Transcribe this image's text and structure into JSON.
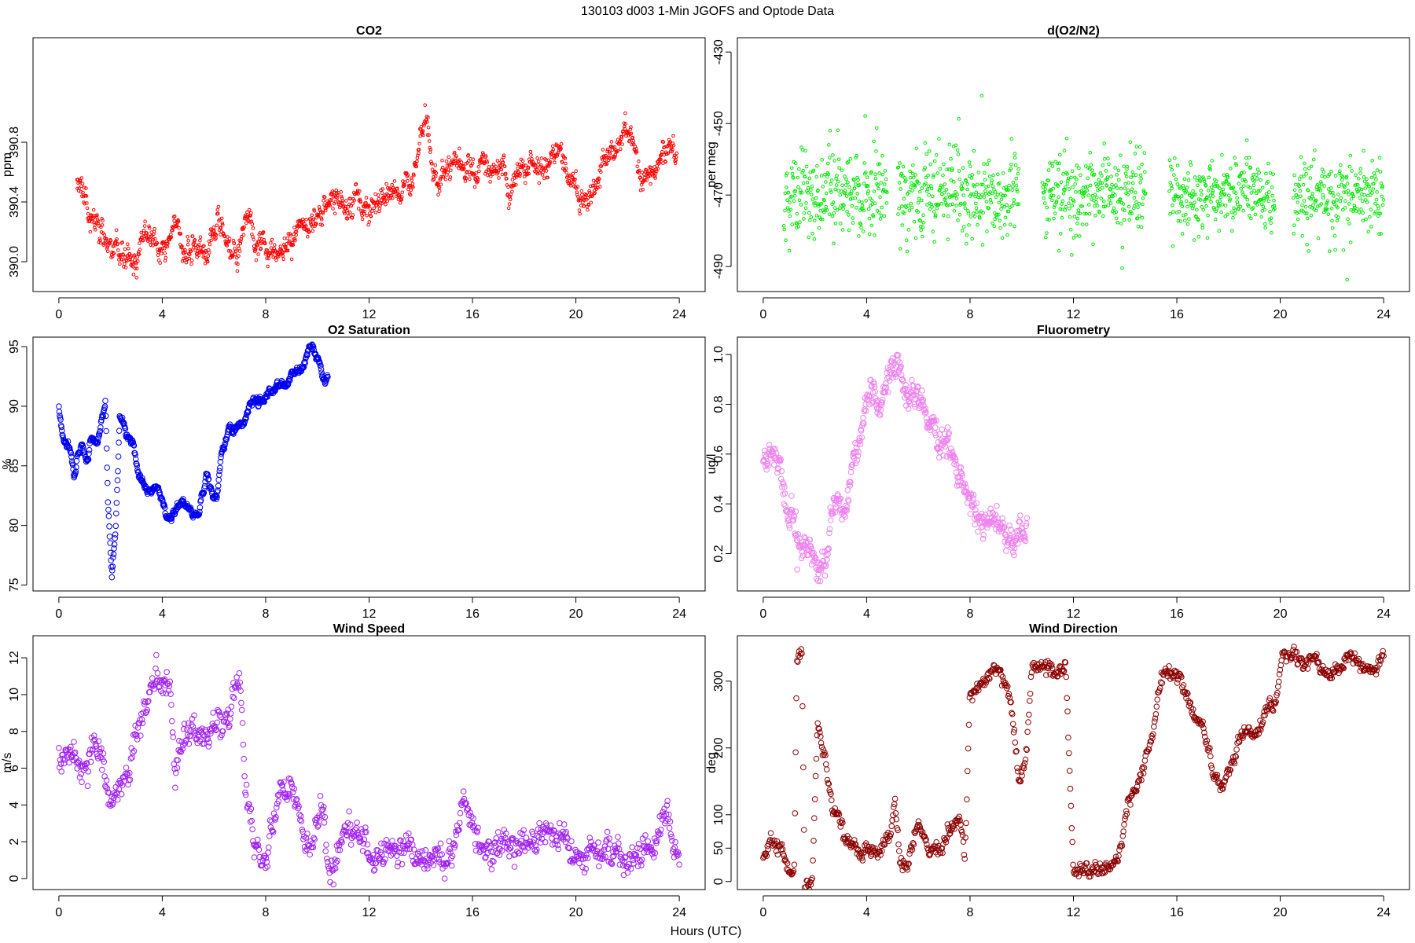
{
  "figure": {
    "title": "130103   d003   1-Min  JGOFS and Optode Data",
    "xlabel": "Hours (UTC)"
  },
  "chart_data": [
    {
      "id": "co2",
      "type": "scatter",
      "title": "CO2",
      "ylabel": "ppm",
      "xlim": [
        -1,
        25
      ],
      "ylim": [
        389.8,
        391.5
      ],
      "xticks": [
        0,
        4,
        8,
        12,
        16,
        20,
        24
      ],
      "yticks": [
        390.0,
        390.4,
        390.8
      ],
      "ytick_labels": [
        "390.0",
        "390.4",
        "390.8"
      ],
      "color": "#ff0000",
      "marker_size": 1.8,
      "anchors": [
        [
          0.7,
          390.6
        ],
        [
          1.0,
          390.45
        ],
        [
          1.3,
          390.3
        ],
        [
          1.6,
          390.2
        ],
        [
          1.9,
          390.1
        ],
        [
          2.2,
          390.0
        ],
        [
          2.6,
          390.0
        ],
        [
          3.0,
          389.95
        ],
        [
          3.3,
          390.2
        ],
        [
          3.7,
          390.15
        ],
        [
          4.0,
          390.0
        ],
        [
          4.4,
          390.15
        ],
        [
          4.6,
          390.25
        ],
        [
          5.0,
          390.05
        ],
        [
          5.5,
          390.1
        ],
        [
          5.8,
          390.1
        ],
        [
          6.1,
          390.25
        ],
        [
          6.5,
          390.05
        ],
        [
          6.8,
          390.05
        ],
        [
          7.1,
          390.2
        ],
        [
          7.3,
          390.3
        ],
        [
          7.6,
          390.05
        ],
        [
          7.9,
          390.2
        ],
        [
          8.2,
          390.1
        ],
        [
          8.6,
          390.1
        ],
        [
          9.0,
          390.15
        ],
        [
          9.5,
          390.25
        ],
        [
          9.9,
          390.3
        ],
        [
          10.4,
          390.35
        ],
        [
          10.8,
          390.45
        ],
        [
          11.2,
          390.35
        ],
        [
          11.6,
          390.4
        ],
        [
          12.0,
          390.3
        ],
        [
          12.4,
          390.45
        ],
        [
          12.8,
          390.5
        ],
        [
          13.2,
          390.55
        ],
        [
          13.6,
          390.5
        ],
        [
          13.9,
          390.65
        ],
        [
          14.2,
          390.9
        ],
        [
          14.6,
          390.55
        ],
        [
          15.6,
          390.6
        ],
        [
          15.9,
          390.55
        ],
        [
          16.3,
          390.6
        ],
        [
          16.8,
          390.7
        ],
        [
          17.2,
          390.6
        ],
        [
          17.5,
          390.45
        ],
        [
          17.9,
          390.6
        ],
        [
          18.3,
          390.65
        ],
        [
          18.7,
          390.55
        ],
        [
          19.0,
          390.65
        ],
        [
          19.4,
          390.7
        ],
        [
          19.8,
          390.55
        ],
        [
          20.5,
          390.4
        ],
        [
          20.8,
          390.55
        ],
        [
          21.2,
          390.65
        ],
        [
          21.6,
          390.7
        ],
        [
          22.0,
          390.9
        ],
        [
          22.3,
          390.8
        ],
        [
          22.6,
          390.65
        ],
        [
          23.0,
          390.65
        ],
        [
          23.4,
          390.75
        ],
        [
          23.9,
          390.8
        ]
      ],
      "noise": 0.05,
      "spread": 0.06,
      "pattern": "walk",
      "n": 1400,
      "seed": 11
    },
    {
      "id": "o2n2",
      "type": "scatter",
      "title": "d(O2/N2)",
      "ylabel": "per meg",
      "xlim": [
        -1,
        25
      ],
      "ylim": [
        -497,
        -426
      ],
      "xticks": [
        0,
        4,
        8,
        12,
        16,
        20,
        24
      ],
      "yticks": [
        -490,
        -470,
        -450,
        -430
      ],
      "ytick_labels": [
        "-490",
        "-470",
        "-450",
        "-430"
      ],
      "color": "#00e600",
      "marker_size": 1.8,
      "segments": [
        [
          0.8,
          4.8
        ],
        [
          5.2,
          9.9
        ],
        [
          10.8,
          14.8
        ],
        [
          15.7,
          19.8
        ],
        [
          20.5,
          24.0
        ]
      ],
      "center": -470,
      "noise": 5.5,
      "pattern": "uniform",
      "n": 1300,
      "seed": 23
    },
    {
      "id": "o2sat",
      "type": "scatter",
      "title": "O2 Saturation",
      "ylabel": "%",
      "xlim": [
        -1,
        25
      ],
      "ylim": [
        74.5,
        95.8
      ],
      "xticks": [
        0,
        4,
        8,
        12,
        16,
        20,
        24
      ],
      "yticks": [
        75,
        80,
        85,
        90,
        95
      ],
      "ytick_labels": [
        "75",
        "80",
        "85",
        "90",
        "95"
      ],
      "color": "#0000ee",
      "marker_size": 3.3,
      "anchors": [
        [
          0.0,
          89.8
        ],
        [
          0.3,
          86.5
        ],
        [
          0.6,
          85.0
        ],
        [
          0.9,
          87.0
        ],
        [
          1.1,
          85.5
        ],
        [
          1.3,
          88.0
        ],
        [
          1.5,
          87.0
        ],
        [
          1.8,
          90.5
        ],
        [
          1.9,
          82.0
        ],
        [
          2.05,
          75.5
        ],
        [
          2.2,
          80.0
        ],
        [
          2.35,
          89.5
        ],
        [
          2.6,
          88.0
        ],
        [
          2.9,
          87.0
        ],
        [
          3.1,
          84.0
        ],
        [
          3.5,
          82.8
        ],
        [
          3.9,
          83.0
        ],
        [
          4.2,
          81.0
        ],
        [
          4.6,
          81.5
        ],
        [
          5.0,
          81.5
        ],
        [
          5.4,
          81.0
        ],
        [
          5.7,
          84.5
        ],
        [
          5.9,
          83.0
        ],
        [
          6.1,
          82.5
        ],
        [
          6.3,
          86.0
        ],
        [
          6.6,
          87.5
        ],
        [
          7.0,
          88.5
        ],
        [
          7.3,
          89.5
        ],
        [
          7.7,
          90.0
        ],
        [
          8.2,
          91.5
        ],
        [
          8.8,
          92.5
        ],
        [
          9.5,
          93.5
        ],
        [
          9.8,
          94.8
        ],
        [
          10.1,
          93.5
        ],
        [
          10.3,
          91.5
        ],
        [
          10.4,
          92.0
        ]
      ],
      "noise": 0.35,
      "spread": 0.0,
      "pattern": "walk",
      "n": 620,
      "seed": 37
    },
    {
      "id": "fluor",
      "type": "scatter",
      "title": "Fluorometry",
      "ylabel": "ug/l",
      "xlim": [
        -1,
        25
      ],
      "ylim": [
        0.05,
        1.07
      ],
      "xticks": [
        0,
        4,
        8,
        12,
        16,
        20,
        24
      ],
      "yticks": [
        0.2,
        0.4,
        0.6,
        0.8,
        1.0
      ],
      "ytick_labels": [
        "0.2",
        "0.4",
        "0.6",
        "0.8",
        "1.0"
      ],
      "color": "#ee82ee",
      "marker_size": 3.3,
      "anchors": [
        [
          0.0,
          0.6
        ],
        [
          0.4,
          0.65
        ],
        [
          0.7,
          0.55
        ],
        [
          1.0,
          0.35
        ],
        [
          1.4,
          0.28
        ],
        [
          1.8,
          0.2
        ],
        [
          2.1,
          0.13
        ],
        [
          2.4,
          0.2
        ],
        [
          2.7,
          0.35
        ],
        [
          3.2,
          0.4
        ],
        [
          3.5,
          0.6
        ],
        [
          3.8,
          0.68
        ],
        [
          4.1,
          0.78
        ],
        [
          4.6,
          0.82
        ],
        [
          5.0,
          0.95
        ],
        [
          5.3,
          0.9
        ],
        [
          5.6,
          0.8
        ],
        [
          6.0,
          0.85
        ],
        [
          6.4,
          0.75
        ],
        [
          6.8,
          0.65
        ],
        [
          7.3,
          0.62
        ],
        [
          7.6,
          0.6
        ],
        [
          8.0,
          0.45
        ],
        [
          8.5,
          0.35
        ],
        [
          9.0,
          0.32
        ],
        [
          9.5,
          0.3
        ],
        [
          9.9,
          0.25
        ],
        [
          10.2,
          0.3
        ]
      ],
      "noise": 0.035,
      "spread": 0.045,
      "pattern": "walk",
      "n": 560,
      "seed": 41
    },
    {
      "id": "wspd",
      "type": "scatter",
      "title": "Wind Speed",
      "ylabel": "m/s",
      "xlim": [
        -1,
        25
      ],
      "ylim": [
        -0.6,
        13.2
      ],
      "xticks": [
        0,
        4,
        8,
        12,
        16,
        20,
        24
      ],
      "yticks": [
        0,
        2,
        4,
        6,
        8,
        10,
        12
      ],
      "ytick_labels": [
        "0",
        "2",
        "4",
        "6",
        "8",
        "10",
        "12"
      ],
      "color": "#a020f0",
      "marker_size": 3.3,
      "anchors": [
        [
          0.0,
          6.2
        ],
        [
          0.5,
          6.3
        ],
        [
          1.0,
          6.0
        ],
        [
          1.4,
          7.0
        ],
        [
          1.7,
          6.0
        ],
        [
          2.0,
          3.5
        ],
        [
          2.4,
          5.5
        ],
        [
          3.0,
          8.0
        ],
        [
          3.5,
          10.0
        ],
        [
          4.0,
          10.5
        ],
        [
          4.3,
          11.0
        ],
        [
          4.5,
          6.0
        ],
        [
          5.0,
          7.0
        ],
        [
          5.4,
          8.0
        ],
        [
          5.8,
          7.0
        ],
        [
          6.2,
          8.0
        ],
        [
          6.6,
          8.5
        ],
        [
          7.0,
          11.5
        ],
        [
          7.2,
          5.0
        ],
        [
          7.6,
          2.0
        ],
        [
          8.0,
          1.5
        ],
        [
          8.5,
          5.0
        ],
        [
          9.0,
          4.0
        ],
        [
          9.3,
          3.0
        ],
        [
          9.7,
          1.0
        ],
        [
          10.1,
          3.5
        ],
        [
          10.5,
          0.5
        ],
        [
          11.0,
          2.0
        ],
        [
          11.5,
          2.5
        ],
        [
          12.0,
          2.2
        ],
        [
          12.5,
          2.0
        ],
        [
          13.0,
          2.0
        ],
        [
          13.5,
          1.5
        ],
        [
          14.0,
          0.8
        ],
        [
          14.5,
          1.8
        ],
        [
          15.0,
          1.0
        ],
        [
          15.3,
          2.0
        ],
        [
          15.6,
          5.5
        ],
        [
          16.0,
          3.5
        ],
        [
          16.3,
          2.5
        ],
        [
          16.8,
          1.5
        ],
        [
          17.5,
          1.8
        ],
        [
          18.0,
          2.0
        ],
        [
          18.5,
          2.0
        ],
        [
          19.0,
          3.0
        ],
        [
          19.5,
          2.5
        ],
        [
          20.0,
          1.2
        ],
        [
          20.5,
          1.4
        ],
        [
          21.0,
          1.2
        ],
        [
          21.5,
          1.3
        ],
        [
          22.0,
          1.0
        ],
        [
          22.5,
          1.5
        ],
        [
          23.0,
          1.8
        ],
        [
          23.5,
          3.5
        ],
        [
          23.8,
          2.0
        ],
        [
          24.0,
          1.0
        ]
      ],
      "noise": 0.45,
      "spread": 0.6,
      "pattern": "walk",
      "n": 950,
      "seed": 53
    },
    {
      "id": "wdir",
      "type": "scatter",
      "title": "Wind Direction",
      "ylabel": "deg",
      "xlim": [
        -1,
        25
      ],
      "ylim": [
        -12,
        368
      ],
      "xticks": [
        0,
        4,
        8,
        12,
        16,
        20,
        24
      ],
      "yticks": [
        0,
        50,
        100,
        200,
        300
      ],
      "ytick_labels": [
        "0",
        "50",
        "100",
        "200",
        "300"
      ],
      "color": "#8b0000",
      "marker_size": 3.3,
      "anchors": [
        [
          0.0,
          40
        ],
        [
          0.3,
          55
        ],
        [
          0.6,
          45
        ],
        [
          0.9,
          20
        ],
        [
          1.2,
          15
        ],
        [
          1.3,
          330
        ],
        [
          1.5,
          345
        ],
        [
          1.6,
          0
        ],
        [
          1.9,
          5
        ],
        [
          2.1,
          240
        ],
        [
          2.4,
          180
        ],
        [
          2.7,
          100
        ],
        [
          3.2,
          70
        ],
        [
          3.6,
          55
        ],
        [
          4.0,
          45
        ],
        [
          4.5,
          40
        ],
        [
          4.9,
          60
        ],
        [
          5.1,
          120
        ],
        [
          5.3,
          30
        ],
        [
          5.6,
          15
        ],
        [
          6.0,
          90
        ],
        [
          6.4,
          40
        ],
        [
          6.8,
          50
        ],
        [
          7.2,
          80
        ],
        [
          7.6,
          100
        ],
        [
          7.8,
          30
        ],
        [
          8.0,
          280
        ],
        [
          8.4,
          300
        ],
        [
          8.9,
          320
        ],
        [
          9.3,
          300
        ],
        [
          9.6,
          260
        ],
        [
          9.9,
          150
        ],
        [
          10.2,
          200
        ],
        [
          10.4,
          330
        ],
        [
          10.8,
          320
        ],
        [
          11.3,
          315
        ],
        [
          11.7,
          320
        ],
        [
          12.0,
          5
        ],
        [
          12.5,
          10
        ],
        [
          13.0,
          8
        ],
        [
          13.4,
          15
        ],
        [
          13.7,
          25
        ],
        [
          14.1,
          120
        ],
        [
          14.5,
          150
        ],
        [
          14.9,
          200
        ],
        [
          15.1,
          220
        ],
        [
          15.4,
          320
        ],
        [
          15.8,
          305
        ],
        [
          16.2,
          300
        ],
        [
          16.6,
          250
        ],
        [
          17.0,
          240
        ],
        [
          17.4,
          170
        ],
        [
          17.8,
          150
        ],
        [
          18.2,
          180
        ],
        [
          18.6,
          220
        ],
        [
          19.0,
          230
        ],
        [
          19.4,
          260
        ],
        [
          19.8,
          270
        ],
        [
          20.1,
          340
        ],
        [
          20.5,
          345
        ],
        [
          20.9,
          330
        ],
        [
          21.3,
          340
        ],
        [
          21.7,
          320
        ],
        [
          22.1,
          320
        ],
        [
          22.5,
          330
        ],
        [
          23.0,
          340
        ],
        [
          23.5,
          320
        ],
        [
          24.0,
          350
        ]
      ],
      "noise": 6,
      "spread": 8,
      "pattern": "walk",
      "n": 900,
      "seed": 67
    }
  ]
}
